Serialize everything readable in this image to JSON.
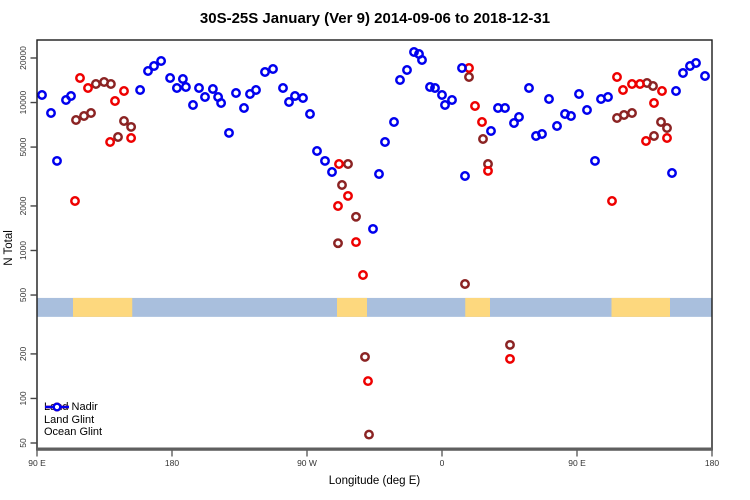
{
  "title": "30S-25S January (Ver 9)   2014-09-06 to 2018-12-31",
  "chart_data": {
    "type": "scatter",
    "xlabel": "Longitude (deg E)",
    "ylabel": "N Total",
    "y_scale": "log10",
    "y_range": [
      45,
      26000
    ],
    "y_ticks": [
      20000,
      10000,
      5000,
      2000,
      1000,
      500,
      200,
      100,
      50
    ],
    "x_axis_span_deg": [
      0,
      450
    ],
    "x_ticks": [
      {
        "pos_deg": 0,
        "label": "90 E"
      },
      {
        "pos_deg": 90,
        "label": "180"
      },
      {
        "pos_deg": 180,
        "label": "90 W"
      },
      {
        "pos_deg": 270,
        "label": "0"
      },
      {
        "pos_deg": 360,
        "label": "90 E"
      },
      {
        "pos_deg": 450,
        "label": "180"
      }
    ],
    "grid": "off",
    "legend_position": "bottom-left",
    "land_ocean_strip": {
      "description": "horizontal strip showing ocean (blue) and land (tan) along longitude",
      "ocean_color": "#A9BFDD",
      "land_color": "#FDD87E",
      "n_top": 478,
      "n_bottom": 356,
      "land_segments_deg": [
        [
          24,
          63.5
        ],
        [
          200,
          220
        ],
        [
          285.5,
          302
        ],
        [
          383,
          422
        ]
      ]
    },
    "series": [
      {
        "name": "Land Nadir",
        "color": "#8B2323",
        "points": [
          [
            39.3,
            13340
          ],
          [
            44.7,
            13770
          ],
          [
            49.3,
            13340
          ],
          [
            26,
            7620
          ],
          [
            31.3,
            8110
          ],
          [
            36,
            8500
          ],
          [
            58,
            7500
          ],
          [
            62.7,
            6840
          ],
          [
            54,
            5850
          ],
          [
            207.3,
            3840
          ],
          [
            203.3,
            2770
          ],
          [
            212.7,
            1690
          ],
          [
            200.7,
            1120
          ],
          [
            285.3,
            594
          ],
          [
            288,
            14880
          ],
          [
            297.3,
            5670
          ],
          [
            300.7,
            3840
          ],
          [
            406.7,
            13560
          ],
          [
            410.7,
            12930
          ],
          [
            386.7,
            7860
          ],
          [
            391.3,
            8240
          ],
          [
            396.7,
            8500
          ],
          [
            416,
            7390
          ],
          [
            420,
            6730
          ],
          [
            411.3,
            5940
          ],
          [
            218.7,
            191
          ],
          [
            221.3,
            57
          ],
          [
            315.3,
            230
          ]
        ]
      },
      {
        "name": "Land Glint",
        "color": "#EE0000",
        "points": [
          [
            28.7,
            14650
          ],
          [
            34,
            12540
          ],
          [
            52,
            10240
          ],
          [
            58,
            11970
          ],
          [
            48.7,
            5415
          ],
          [
            62.7,
            5760
          ],
          [
            25.3,
            2160
          ],
          [
            201.3,
            3840
          ],
          [
            207.3,
            2340
          ],
          [
            200.7,
            2000
          ],
          [
            212.7,
            1140
          ],
          [
            217.3,
            683
          ],
          [
            288,
            17120
          ],
          [
            292,
            9480
          ],
          [
            296.7,
            7390
          ],
          [
            300.7,
            3450
          ],
          [
            386.7,
            14880
          ],
          [
            390.7,
            12160
          ],
          [
            396.7,
            13340
          ],
          [
            402,
            13340
          ],
          [
            411.3,
            9930
          ],
          [
            416.7,
            11970
          ],
          [
            406,
            5500
          ],
          [
            420,
            5760
          ],
          [
            383.3,
            2160
          ],
          [
            220.7,
            131
          ],
          [
            315.3,
            185
          ]
        ]
      },
      {
        "name": "Ocean Glint",
        "color": "#0000EE",
        "points": [
          [
            3.3,
            11250
          ],
          [
            9.3,
            8500
          ],
          [
            13.3,
            4030
          ],
          [
            19.3,
            10400
          ],
          [
            22.7,
            11070
          ],
          [
            68.7,
            12160
          ],
          [
            74,
            16340
          ],
          [
            78,
            17660
          ],
          [
            82.7,
            19090
          ],
          [
            88.7,
            14650
          ],
          [
            93.3,
            12540
          ],
          [
            97.3,
            14420
          ],
          [
            99.3,
            12740
          ],
          [
            104,
            9630
          ],
          [
            108,
            12540
          ],
          [
            112,
            10900
          ],
          [
            117.3,
            12350
          ],
          [
            120.7,
            10900
          ],
          [
            122.7,
            9930
          ],
          [
            128,
            6230
          ],
          [
            132.7,
            11600
          ],
          [
            138,
            9190
          ],
          [
            142,
            11420
          ],
          [
            146,
            12160
          ],
          [
            152,
            16090
          ],
          [
            157.3,
            16860
          ],
          [
            164,
            12540
          ],
          [
            168,
            10090
          ],
          [
            172,
            11070
          ],
          [
            177.3,
            10730
          ],
          [
            182,
            8370
          ],
          [
            186.7,
            4705
          ],
          [
            192,
            4030
          ],
          [
            196.7,
            3395
          ],
          [
            224,
            1400
          ],
          [
            228,
            3290
          ],
          [
            232,
            5415
          ],
          [
            238,
            7390
          ],
          [
            242,
            14210
          ],
          [
            246.7,
            16600
          ],
          [
            251.3,
            21960
          ],
          [
            254.7,
            21280
          ],
          [
            256.7,
            19390
          ],
          [
            262,
            12740
          ],
          [
            265.3,
            12540
          ],
          [
            270,
            11250
          ],
          [
            272,
            9630
          ],
          [
            276.7,
            10400
          ],
          [
            283.3,
            17120
          ],
          [
            285.3,
            3190
          ],
          [
            302.7,
            6420
          ],
          [
            307.3,
            9190
          ],
          [
            312,
            9190
          ],
          [
            318,
            7270
          ],
          [
            321.3,
            7990
          ],
          [
            328,
            12540
          ],
          [
            332.7,
            5940
          ],
          [
            336.7,
            6130
          ],
          [
            341.3,
            10570
          ],
          [
            346.7,
            6940
          ],
          [
            352,
            8370
          ],
          [
            356,
            8110
          ],
          [
            361.3,
            11420
          ],
          [
            366.7,
            8910
          ],
          [
            372,
            4030
          ],
          [
            376,
            10570
          ],
          [
            380.7,
            10900
          ],
          [
            423.3,
            3340
          ],
          [
            426,
            11970
          ],
          [
            430.7,
            15840
          ],
          [
            435.3,
            17660
          ],
          [
            439.3,
            18500
          ],
          [
            445.3,
            15110
          ]
        ]
      }
    ],
    "style": {
      "marker": "open-circle",
      "marker_radius_px": 3.7,
      "marker_stroke_px": 2.5,
      "box_color": "#1b1b1b",
      "bottom_axis_color": "#5f5f5f",
      "tick_label_color": "#333333"
    }
  }
}
